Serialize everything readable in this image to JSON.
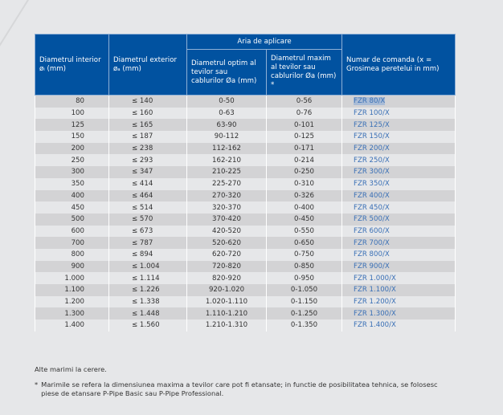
{
  "header": {
    "col1": "Diametrul interior øᵢ (mm)",
    "col2": "Diametrul exterior øₐ (mm)",
    "group": "Aria de aplicare",
    "col3": "Diametrul optim al tevilor sau cablurilor Øa (mm)",
    "col4": "Diametrul maxim al tevilor sau cablurilor Øa (mm) *",
    "col5": "Numar de comanda (x = Grosimea peretelui in mm)"
  },
  "rows": [
    [
      "80",
      "≤ 140",
      "0-50",
      "0-56",
      "FZR 80/X"
    ],
    [
      "100",
      "≤ 160",
      "0-63",
      "0-76",
      "FZR 100/X"
    ],
    [
      "125",
      "≤ 165",
      "63-90",
      "0-101",
      "FZR 125/X"
    ],
    [
      "150",
      "≤ 187",
      "90-112",
      "0-125",
      "FZR 150/X"
    ],
    [
      "200",
      "≤ 238",
      "112-162",
      "0-171",
      "FZR 200/X"
    ],
    [
      "250",
      "≤ 293",
      "162-210",
      "0-214",
      "FZR 250/X"
    ],
    [
      "300",
      "≤ 347",
      "210-225",
      "0-250",
      "FZR 300/X"
    ],
    [
      "350",
      "≤ 414",
      "225-270",
      "0-310",
      "FZR 350/X"
    ],
    [
      "400",
      "≤ 464",
      "270-320",
      "0-326",
      "FZR 400/X"
    ],
    [
      "450",
      "≤ 514",
      "320-370",
      "0-400",
      "FZR 450/X"
    ],
    [
      "500",
      "≤ 570",
      "370-420",
      "0-450",
      "FZR 500/X"
    ],
    [
      "600",
      "≤ 673",
      "420-520",
      "0-550",
      "FZR 600/X"
    ],
    [
      "700",
      "≤ 787",
      "520-620",
      "0-650",
      "FZR 700/X"
    ],
    [
      "800",
      "≤ 894",
      "620-720",
      "0-750",
      "FZR 800/X"
    ],
    [
      "900",
      "≤ 1.004",
      "720-820",
      "0-850",
      "FZR 900/X"
    ],
    [
      "1.000",
      "≤ 1.114",
      "820-920",
      "0-950",
      "FZR 1.000/X"
    ],
    [
      "1.100",
      "≤ 1.226",
      "920-1.020",
      "0-1.050",
      "FZR 1.100/X"
    ],
    [
      "1.200",
      "≤ 1.338",
      "1.020-1.110",
      "0-1.150",
      "FZR 1.200/X"
    ],
    [
      "1.300",
      "≤ 1.448",
      "1.110-1.210",
      "0-1.250",
      "FZR 1.300/X"
    ],
    [
      "1.400",
      "≤ 1.560",
      "1.210-1.310",
      "0-1.350",
      "FZR 1.400/X"
    ]
  ],
  "notes": {
    "other_sizes": "Alte marimi la cerere.",
    "asterisk": "*",
    "footnote": "Marimile se refera la dimensiunea maxima a tevilor care pot fi etansate; in functie de posibilitatea tehnica, se folosesc piese de etansare P-Pipe Basic sau P-Pipe Professional."
  },
  "colors": {
    "header_bg": "#0152a0",
    "link": "#3a70b6",
    "row_odd": "#d3d3d5",
    "row_even": "#e6e7e9"
  }
}
